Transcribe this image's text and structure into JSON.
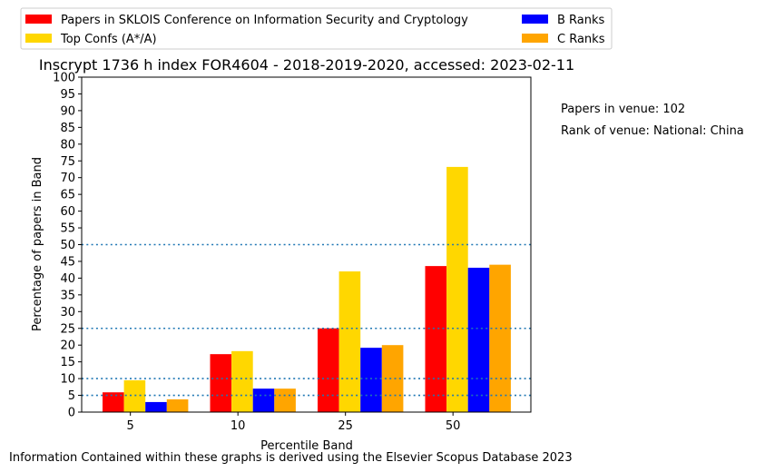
{
  "chart_data": {
    "type": "bar",
    "title": "Inscrypt 1736 h index FOR4604 - 2018-2019-2020, accessed: 2023-02-11",
    "xlabel": "Percentile Band",
    "ylabel": "Percentage of papers in Band",
    "categories": [
      "5",
      "10",
      "25",
      "50"
    ],
    "ylim": [
      0,
      100
    ],
    "yticks": [
      0,
      5,
      10,
      15,
      20,
      25,
      30,
      35,
      40,
      45,
      50,
      55,
      60,
      65,
      70,
      75,
      80,
      85,
      90,
      95,
      100
    ],
    "grid": false,
    "reference_lines": [
      5,
      10,
      25,
      50
    ],
    "reference_line_color": "#1f77b4",
    "legend_position": "top",
    "series": [
      {
        "name": "Papers in SKLOIS Conference on Information Security and Cryptology",
        "color": "#ff0000",
        "values": [
          5.9,
          17.3,
          25.0,
          43.6
        ]
      },
      {
        "name": "Top Confs (A*/A)",
        "color": "#ffd700",
        "values": [
          9.5,
          18.2,
          42.0,
          73.2
        ]
      },
      {
        "name": "B Ranks",
        "color": "#0000ff",
        "values": [
          3.0,
          7.0,
          19.2,
          43.1
        ]
      },
      {
        "name": "C Ranks",
        "color": "#ffa500",
        "values": [
          3.8,
          7.0,
          20.0,
          44.0
        ]
      }
    ]
  },
  "annotations": {
    "papers_in_venue": "Papers in venue: 102",
    "rank_of_venue": "Rank of venue: National: China"
  },
  "footer": "Information Contained within these graphs is derived using the Elsevier Scopus Database 2023"
}
